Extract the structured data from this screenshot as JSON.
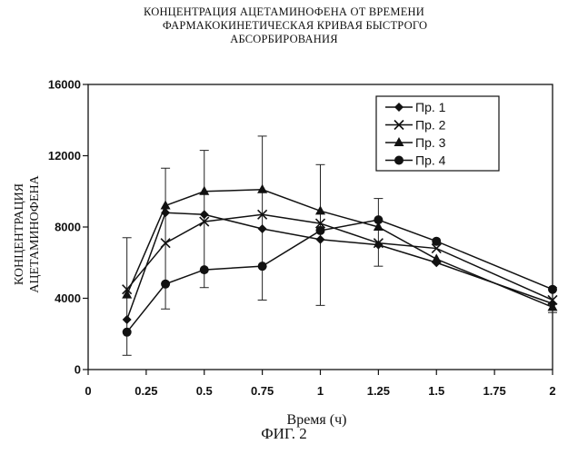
{
  "title": {
    "line1": "КОНЦЕНТРАЦИЯ АЦЕТАМИНОФЕНА ОТ ВРЕМЕНИ",
    "line2": "ФАРМАКОКИНЕТИЧЕСКАЯ КРИВАЯ БЫСТРОГО",
    "line3": "АБСОРБИРОВАНИЯ"
  },
  "figure_label": "ФИГ. 2",
  "chart_data": {
    "type": "line",
    "xlabel": "Время (ч)",
    "ylabel_lines": [
      "КОНЦЕНТРАЦИЯ",
      "АЦЕТАМИНОФЕНА"
    ],
    "xlim": [
      0,
      2
    ],
    "ylim": [
      0,
      16000
    ],
    "xticks": [
      0,
      0.25,
      0.5,
      0.75,
      1,
      1.25,
      1.5,
      1.75,
      2
    ],
    "xtick_labels": [
      "0",
      "0.25",
      "0.5",
      "0.75",
      "1",
      "1.25",
      "1.5",
      "1.75",
      "2"
    ],
    "yticks": [
      0,
      4000,
      8000,
      12000,
      16000
    ],
    "ytick_labels": [
      "0",
      "4000",
      "8000",
      "12000",
      "16000"
    ],
    "grid": false,
    "legend_position": "top-right",
    "series": [
      {
        "name": "Пр. 1",
        "marker": "diamond",
        "x": [
          0.167,
          0.333,
          0.5,
          0.75,
          1,
          1.25,
          1.5,
          2
        ],
        "y": [
          2800,
          8800,
          8700,
          7900,
          7300,
          7000,
          6000,
          3700
        ]
      },
      {
        "name": "Пр. 2",
        "marker": "x",
        "x": [
          0.167,
          0.333,
          0.5,
          0.75,
          1,
          1.25,
          1.5,
          2
        ],
        "y": [
          4500,
          7100,
          8300,
          8700,
          8200,
          7100,
          6800,
          3900
        ]
      },
      {
        "name": "Пр. 3",
        "marker": "triangle",
        "x": [
          0.167,
          0.333,
          0.5,
          0.75,
          1,
          1.25,
          1.5,
          2
        ],
        "y": [
          4200,
          9200,
          10000,
          10100,
          8900,
          8000,
          6200,
          3500
        ]
      },
      {
        "name": "Пр. 4",
        "marker": "circle",
        "x": [
          0.167,
          0.333,
          0.5,
          0.75,
          1,
          1.25,
          1.5,
          2
        ],
        "y": [
          2100,
          4800,
          5600,
          5800,
          7800,
          8400,
          7200,
          4500
        ]
      }
    ],
    "error_bars": [
      {
        "x": 0.167,
        "low": 800,
        "high": 7400
      },
      {
        "x": 0.333,
        "low": 3400,
        "high": 11300
      },
      {
        "x": 0.5,
        "low": 4600,
        "high": 12300
      },
      {
        "x": 0.75,
        "low": 3900,
        "high": 13100
      },
      {
        "x": 1,
        "low": 3600,
        "high": 11500
      },
      {
        "x": 1.25,
        "low": 5800,
        "high": 9600
      },
      {
        "x": 2,
        "low": 3200,
        "high": 4600
      }
    ]
  }
}
